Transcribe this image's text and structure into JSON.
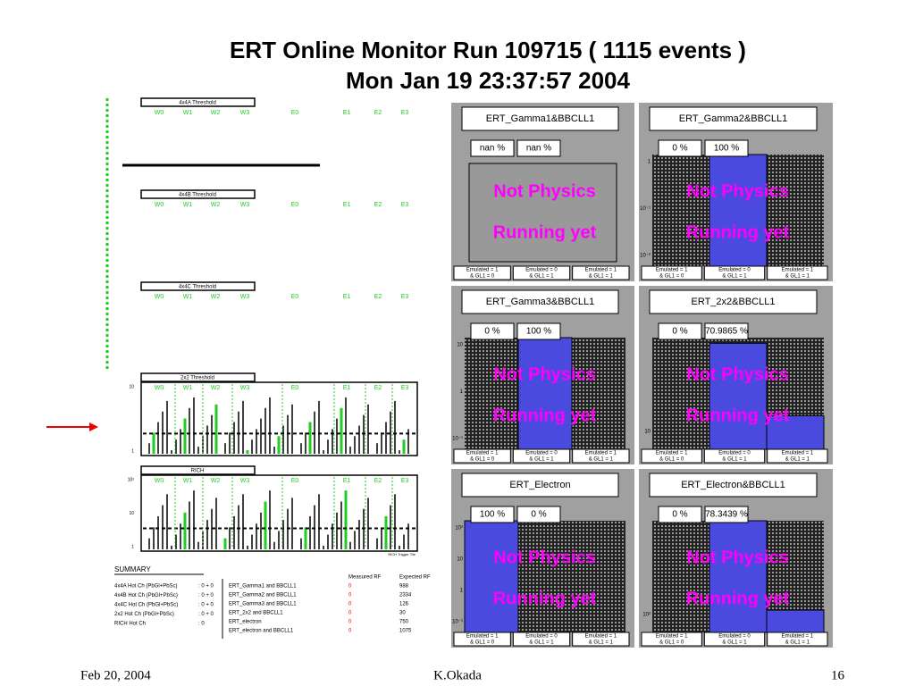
{
  "header": {
    "title_line1": "ERT Online Monitor  Run 109715 ( 1115 events )",
    "title_line2": "Mon Jan 19 23:37:57 2004"
  },
  "left_panels": {
    "channel_labels": [
      "W0",
      "W1",
      "W2",
      "W3",
      "E0",
      "E1",
      "E2",
      "E3"
    ],
    "panels": [
      {
        "title": "4x4A Threshold"
      },
      {
        "title": "4x4B Threshold"
      },
      {
        "title": "4x4C Threshold"
      },
      {
        "title": "2x2 Threshold",
        "y_labels": [
          "10",
          "1"
        ]
      },
      {
        "title": "RICH",
        "y_labels": [
          "10²",
          "10",
          "1"
        ],
        "note": "RICH Trigger Tile"
      }
    ]
  },
  "summary": {
    "title": "SUMMARY",
    "hot_channels": [
      {
        "name": "4x4A Hot Ch (PbGl+PbSc)",
        "count": ": 0 + 0"
      },
      {
        "name": "4x4B Hot Ch (PbGl+PbSc)",
        "count": ": 0 + 0"
      },
      {
        "name": "4x4C Hot Ch (PbGl+PbSc)",
        "count": ": 0 + 0"
      },
      {
        "name": "2x2 Hot Ch (PbGl+PbSc)",
        "count": ":  0 + 0"
      },
      {
        "name": "RICH Hot Ch",
        "count": ":  0"
      }
    ],
    "rf_headers": [
      "Measured RF",
      "Expected RF"
    ],
    "triggers": [
      {
        "name": "ERT_Gamma1 and BBCLL1",
        "measured": 0,
        "expected": 988
      },
      {
        "name": "ERT_Gamma2 and BBCLL1",
        "measured": 0,
        "expected": 2334
      },
      {
        "name": "ERT_Gamma3 and BBCLL1",
        "measured": 0,
        "expected": 126
      },
      {
        "name": "ERT_2x2 and BBCLL1",
        "measured": 0,
        "expected": 30
      },
      {
        "name": "ERT_electron",
        "measured": 0,
        "expected": 750
      },
      {
        "name": "ERT_electron and BBCLL1",
        "measured": 0,
        "expected": 1075
      }
    ]
  },
  "monitor": {
    "overlay": [
      "Not Physics",
      "Running yet"
    ],
    "bin_labels": [
      [
        "Emulated = 1",
        "&  GL1 = 0"
      ],
      [
        "Emulated = 0",
        "&  GL1 = 1"
      ],
      [
        "Emulated = 1",
        "&  GL1 = 1"
      ]
    ],
    "panels": [
      {
        "title": "ERT_Gamma1&BBCLL1",
        "percents": [
          "nan %",
          "nan %"
        ]
      },
      {
        "title": "ERT_Gamma2&BBCLL1",
        "percents": [
          "0 %",
          "100 %"
        ],
        "y_labels": [
          "1",
          "10⁻¹",
          "10⁻²"
        ]
      },
      {
        "title": "ERT_Gamma3&BBCLL1",
        "percents": [
          "0 %",
          "100 %"
        ],
        "y_labels": [
          "10",
          "1",
          "10⁻¹"
        ]
      },
      {
        "title": "ERT_2x2&BBCLL1",
        "percents": [
          "0 %",
          "70.9865 %"
        ],
        "y_labels": [
          "10"
        ]
      },
      {
        "title": "ERT_Electron",
        "percents": [
          "100 %",
          "0 %"
        ],
        "y_labels": [
          "10²",
          "10",
          "1",
          "10⁻¹"
        ]
      },
      {
        "title": "ERT_Electron&BBCLL1",
        "percents": [
          "0 %",
          "78.3439 %"
        ],
        "y_labels": [
          "10²"
        ]
      }
    ]
  },
  "footer": {
    "date": "Feb 20, 2004",
    "author": "K.Okada",
    "page": "16"
  }
}
